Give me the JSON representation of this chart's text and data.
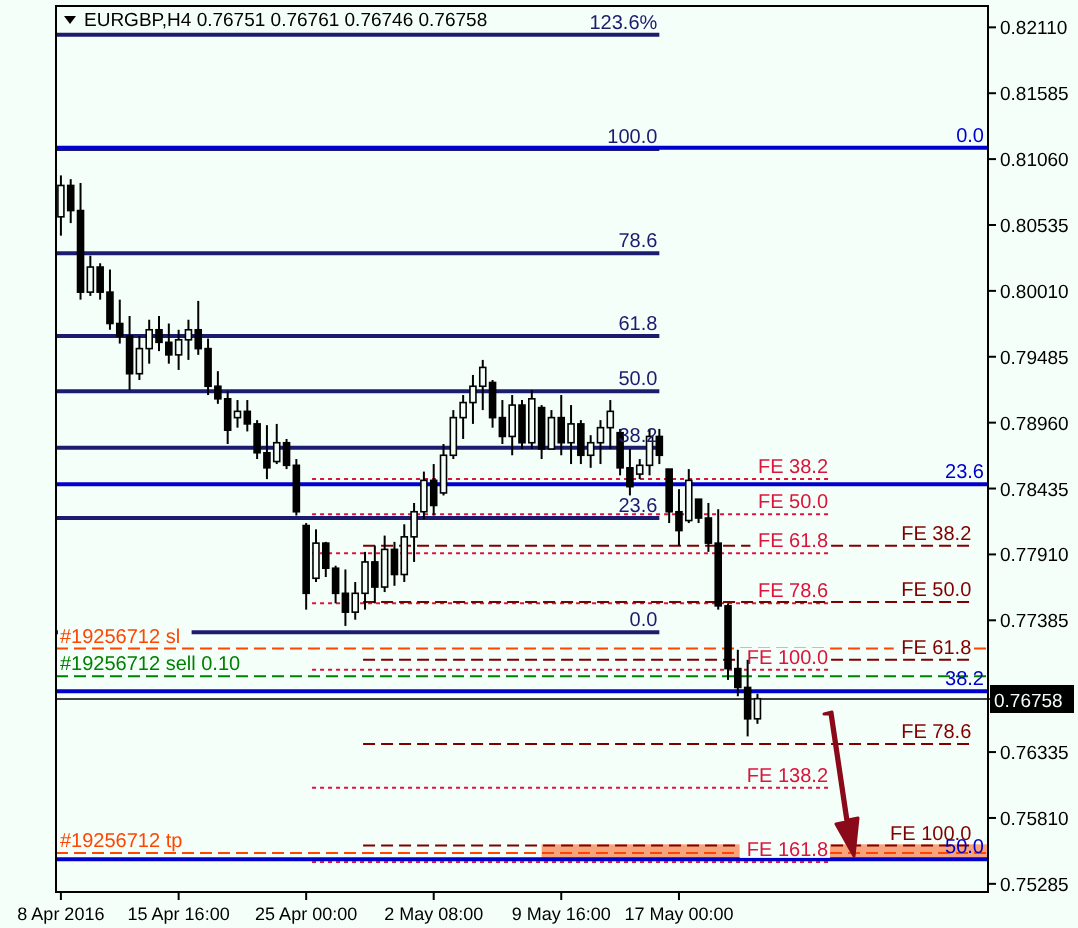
{
  "chart_data": {
    "type": "candlestick",
    "title": "EURGBP,H4  0.76751 0.76761 0.76746 0.76758",
    "categories": [
      "8 Apr 2016",
      null,
      null,
      null,
      null,
      null,
      null,
      null,
      null,
      null,
      null,
      null,
      "15 Apr 16:00",
      null,
      null,
      null,
      null,
      null,
      null,
      null,
      null,
      null,
      null,
      null,
      null,
      "25 Apr 00:00",
      null,
      null,
      null,
      null,
      null,
      null,
      null,
      null,
      null,
      null,
      null,
      null,
      "2 May 08:00",
      null,
      null,
      null,
      null,
      null,
      null,
      null,
      null,
      null,
      null,
      null,
      null,
      "9 May 16:00",
      null,
      null,
      null,
      null,
      null,
      null,
      null,
      null,
      null,
      null,
      null,
      "17 May 00:00",
      null,
      null,
      null,
      null,
      null,
      null,
      null,
      null,
      null,
      null,
      null,
      null,
      null,
      null,
      null,
      null,
      null,
      null,
      null,
      null,
      null,
      null,
      null,
      null,
      null,
      null,
      null,
      null,
      null,
      null,
      null
    ],
    "color": "#000000",
    "ohlc": [
      [
        0.806,
        0.8093,
        0.8045,
        0.8085
      ],
      [
        0.8085,
        0.809,
        0.8055,
        0.8065
      ],
      [
        0.8065,
        0.8087,
        0.7994,
        0.8
      ],
      [
        0.8,
        0.8029,
        0.7997,
        0.802
      ],
      [
        0.802,
        0.8023,
        0.7994,
        0.8
      ],
      [
        0.8,
        0.8018,
        0.797,
        0.7975
      ],
      [
        0.7975,
        0.7994,
        0.7959,
        0.7965
      ],
      [
        0.7965,
        0.7981,
        0.7922,
        0.7935
      ],
      [
        0.7935,
        0.7965,
        0.793,
        0.7955
      ],
      [
        0.7955,
        0.7978,
        0.7943,
        0.797
      ],
      [
        0.797,
        0.7981,
        0.7953,
        0.796
      ],
      [
        0.796,
        0.7975,
        0.7943,
        0.795
      ],
      [
        0.795,
        0.797,
        0.7938,
        0.7962
      ],
      [
        0.7962,
        0.7978,
        0.7946,
        0.797
      ],
      [
        0.797,
        0.7993,
        0.795,
        0.7955
      ],
      [
        0.7955,
        0.7963,
        0.7918,
        0.7925
      ],
      [
        0.7925,
        0.7937,
        0.7911,
        0.7915
      ],
      [
        0.7915,
        0.7921,
        0.7879,
        0.789
      ],
      [
        0.79,
        0.7914,
        0.7892,
        0.7905
      ],
      [
        0.7905,
        0.7914,
        0.7889,
        0.7895
      ],
      [
        0.7895,
        0.7898,
        0.7867,
        0.7872
      ],
      [
        0.7872,
        0.7894,
        0.7851,
        0.786
      ],
      [
        0.7865,
        0.7895,
        0.7863,
        0.788
      ],
      [
        0.788,
        0.7883,
        0.7859,
        0.7862
      ],
      [
        0.7862,
        0.7867,
        0.7822,
        0.7825
      ],
      [
        0.7814,
        0.7816,
        0.7747,
        0.776
      ],
      [
        0.7772,
        0.7811,
        0.7769,
        0.78
      ],
      [
        0.78,
        0.7801,
        0.7773,
        0.778
      ],
      [
        0.778,
        0.7782,
        0.7752,
        0.776
      ],
      [
        0.776,
        0.7779,
        0.7734,
        0.7745
      ],
      [
        0.7745,
        0.7769,
        0.7739,
        0.776
      ],
      [
        0.776,
        0.7793,
        0.7747,
        0.7785
      ],
      [
        0.7785,
        0.7798,
        0.7752,
        0.7765
      ],
      [
        0.7765,
        0.7806,
        0.7761,
        0.7795
      ],
      [
        0.7795,
        0.7801,
        0.7766,
        0.7775
      ],
      [
        0.7775,
        0.7815,
        0.7769,
        0.7805
      ],
      [
        0.7805,
        0.7832,
        0.7785,
        0.7825
      ],
      [
        0.7825,
        0.7857,
        0.7819,
        0.785
      ],
      [
        0.785,
        0.7863,
        0.7822,
        0.783
      ],
      [
        0.784,
        0.7879,
        0.7838,
        0.787
      ],
      [
        0.787,
        0.7906,
        0.7867,
        0.79
      ],
      [
        0.79,
        0.7918,
        0.7883,
        0.7912
      ],
      [
        0.7912,
        0.7934,
        0.7895,
        0.7925
      ],
      [
        0.7925,
        0.7946,
        0.7906,
        0.794
      ],
      [
        0.7928,
        0.793,
        0.7892,
        0.79
      ],
      [
        0.79,
        0.7914,
        0.7879,
        0.7885
      ],
      [
        0.7885,
        0.7918,
        0.787,
        0.791
      ],
      [
        0.791,
        0.7914,
        0.7875,
        0.788
      ],
      [
        0.788,
        0.7922,
        0.7875,
        0.7915
      ],
      [
        0.7908,
        0.791,
        0.7867,
        0.7875
      ],
      [
        0.7875,
        0.7906,
        0.7875,
        0.79
      ],
      [
        0.79,
        0.7918,
        0.787,
        0.788
      ],
      [
        0.788,
        0.791,
        0.7863,
        0.7895
      ],
      [
        0.7895,
        0.7898,
        0.7863,
        0.787
      ],
      [
        0.787,
        0.7886,
        0.786,
        0.788
      ],
      [
        0.788,
        0.7898,
        0.7863,
        0.7892
      ],
      [
        0.7892,
        0.7914,
        0.7875,
        0.7905
      ],
      [
        0.7888,
        0.7891,
        0.7854,
        0.786
      ],
      [
        0.786,
        0.7875,
        0.7838,
        0.7845
      ],
      [
        0.7855,
        0.7867,
        0.7851,
        0.7862
      ],
      [
        0.7862,
        0.7891,
        0.7854,
        0.7885
      ],
      [
        0.7885,
        0.7891,
        0.7863,
        0.787
      ],
      [
        0.7859,
        0.7859,
        0.7816,
        0.7825
      ],
      [
        0.7825,
        0.7843,
        0.7798,
        0.781
      ],
      [
        0.7818,
        0.7859,
        0.7816,
        0.785
      ],
      [
        0.7835,
        0.7835,
        0.7816,
        0.782
      ],
      [
        0.782,
        0.7832,
        0.7793,
        0.78
      ],
      [
        0.78,
        0.7827,
        0.7747,
        0.775
      ],
      [
        0.775,
        0.7752,
        0.7691,
        0.77
      ],
      [
        0.77,
        0.7715,
        0.7678,
        0.7685
      ],
      [
        0.7685,
        0.7707,
        0.7646,
        0.766
      ],
      [
        0.766,
        0.768,
        0.7656,
        0.7676
      ],
      null,
      null,
      null,
      null,
      null,
      null,
      null,
      null,
      null,
      null,
      null,
      null,
      null,
      null,
      null,
      null,
      null,
      null,
      null,
      null,
      null,
      null,
      null
    ],
    "ylim": [
      0.7522,
      0.8228
    ],
    "yticks": [
      {
        "value": 0.8211,
        "label": "0.82110"
      },
      {
        "value": 0.81585,
        "label": "0.81585"
      },
      {
        "value": 0.8106,
        "label": "0.81060"
      },
      {
        "value": 0.80535,
        "label": "0.80535"
      },
      {
        "value": 0.8001,
        "label": "0.80010"
      },
      {
        "value": 0.79485,
        "label": "0.79485"
      },
      {
        "value": 0.7896,
        "label": "0.78960"
      },
      {
        "value": 0.78435,
        "label": "0.78435"
      },
      {
        "value": 0.7791,
        "label": "0.77910"
      },
      {
        "value": 0.77385,
        "label": "0.77385"
      },
      {
        "value": 0.76335,
        "label": "0.76335"
      },
      {
        "value": 0.7581,
        "label": "0.75810"
      },
      {
        "value": 0.75285,
        "label": "0.75285"
      }
    ],
    "bands": [
      {
        "axis": "y",
        "from": 0.7549,
        "to": 0.756,
        "label": null,
        "color": "#f7a47c"
      }
    ],
    "annotations": [
      {
        "text": "123.6%",
        "y": 0.8205
      },
      {
        "text": "100.0",
        "y": 0.8114
      },
      {
        "text": "78.6",
        "y": 0.8031
      },
      {
        "text": "61.8",
        "y": 0.7965
      },
      {
        "text": "50.0",
        "y": 0.7921
      },
      {
        "text": "38.2",
        "y": 0.7876
      },
      {
        "text": "23.6",
        "y": 0.782
      },
      {
        "text": "0.0",
        "y": 0.7729
      },
      {
        "text": "0.0",
        "y": 0.8115
      },
      {
        "text": "23.6",
        "y": 0.7847
      },
      {
        "text": "38.2",
        "y": 0.7682
      },
      {
        "text": "50.0",
        "y": 0.7548
      }
    ],
    "ref_lines": [
      {
        "axis": "y",
        "value": 0.8205,
        "label": null,
        "color": "#1c1c6e",
        "line_style": "solid"
      },
      {
        "axis": "y",
        "value": 0.8114,
        "label": null,
        "color": "#1c1c6e",
        "line_style": "solid"
      },
      {
        "axis": "y",
        "value": 0.8031,
        "label": null,
        "color": "#1c1c6e",
        "line_style": "solid"
      },
      {
        "axis": "y",
        "value": 0.7965,
        "label": null,
        "color": "#1c1c6e",
        "line_style": "solid"
      },
      {
        "axis": "y",
        "value": 0.7921,
        "label": null,
        "color": "#1c1c6e",
        "line_style": "solid"
      },
      {
        "axis": "y",
        "value": 0.7876,
        "label": null,
        "color": "#1c1c6e",
        "line_style": "solid"
      },
      {
        "axis": "y",
        "value": 0.782,
        "label": null,
        "color": "#1c1c6e",
        "line_style": "solid"
      },
      {
        "axis": "y",
        "value": 0.7729,
        "label": null,
        "color": "#1c1c6e",
        "line_style": "solid"
      },
      {
        "axis": "y",
        "value": 0.8115,
        "label": null,
        "color": "#0000cd",
        "line_style": "solid"
      },
      {
        "axis": "y",
        "value": 0.7847,
        "label": null,
        "color": "#0000cd",
        "line_style": "solid"
      },
      {
        "axis": "y",
        "value": 0.7682,
        "label": null,
        "color": "#0000cd",
        "line_style": "solid"
      },
      {
        "axis": "y",
        "value": 0.7548,
        "label": null,
        "color": "#0000cd",
        "line_style": "solid"
      },
      {
        "axis": "y",
        "value": 0.7851,
        "label": "FE 38.2",
        "color": "#dc143c",
        "line_style": "dotted"
      },
      {
        "axis": "y",
        "value": 0.7823,
        "label": "FE 50.0",
        "color": "#dc143c",
        "line_style": "dotted"
      },
      {
        "axis": "y",
        "value": 0.7792,
        "label": "FE 61.8",
        "color": "#dc143c",
        "line_style": "dotted"
      },
      {
        "axis": "y",
        "value": 0.7752,
        "label": "FE 78.6",
        "color": "#dc143c",
        "line_style": "dotted"
      },
      {
        "axis": "y",
        "value": 0.7699,
        "label": "FE 100.0",
        "color": "#dc143c",
        "line_style": "dotted"
      },
      {
        "axis": "y",
        "value": 0.7605,
        "label": "FE 138.2",
        "color": "#dc143c",
        "line_style": "dotted"
      },
      {
        "axis": "y",
        "value": 0.7546,
        "label": "FE 161.8",
        "color": "#dc143c",
        "line_style": "dotted"
      },
      {
        "axis": "y",
        "value": 0.7798,
        "label": "FE 38.2",
        "color": "#800000",
        "line_style": "dashed"
      },
      {
        "axis": "y",
        "value": 0.7753,
        "label": "FE 50.0",
        "color": "#800000",
        "line_style": "dashed"
      },
      {
        "axis": "y",
        "value": 0.7707,
        "label": "FE 61.8",
        "color": "#800000",
        "line_style": "dashed"
      },
      {
        "axis": "y",
        "value": 0.764,
        "label": "FE 78.6",
        "color": "#800000",
        "line_style": "dashed"
      },
      {
        "axis": "y",
        "value": 0.7559,
        "label": "FE 100.0",
        "color": "#800000",
        "line_style": "dashed"
      },
      {
        "axis": "y",
        "value": 0.7716,
        "label": "#19256712 sl",
        "color": "#ff4500",
        "line_style": "dashed"
      },
      {
        "axis": "y",
        "value": 0.7694,
        "label": "#19256712 sell 0.10",
        "color": "#008000",
        "line_style": "dashed"
      },
      {
        "axis": "y",
        "value": 0.7553,
        "label": "#19256712 tp",
        "color": "#ff4500",
        "line_style": "dashed"
      },
      {
        "axis": "y",
        "value": 0.76758,
        "label": "0.76758",
        "color": "#000000",
        "line_style": "solid"
      }
    ]
  }
}
